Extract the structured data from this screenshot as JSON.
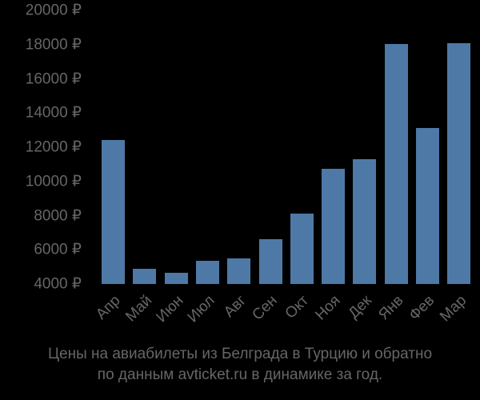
{
  "chart_data": {
    "type": "bar",
    "title": "Цены на авиабилеты из Белграда в Турцию и обратно по данным avticket.ru в динамике за год.",
    "xlabel": "",
    "ylabel": "",
    "categories": [
      "Апр",
      "Май",
      "Июн",
      "Июл",
      "Авг",
      "Сен",
      "Окт",
      "Ноя",
      "Дек",
      "Янв",
      "Фев",
      "Мар"
    ],
    "values": [
      12400,
      4900,
      4650,
      5350,
      5500,
      6600,
      8100,
      10750,
      11300,
      18050,
      13100,
      18100
    ],
    "ylim": [
      4000,
      20000
    ],
    "yticks": [
      4000,
      6000,
      8000,
      10000,
      12000,
      14000,
      16000,
      18000,
      20000
    ],
    "ytick_labels": [
      "4000 ₽",
      "6000 ₽",
      "8000 ₽",
      "10000 ₽",
      "12000 ₽",
      "14000 ₽",
      "16000 ₽",
      "18000 ₽",
      "20000 ₽"
    ],
    "grid": false,
    "legend": null,
    "colors": {
      "bar": "#4e79a7",
      "text": "#666666",
      "background": "#000000"
    }
  },
  "caption": {
    "line1": "Цены на авиабилеты из Белграда в Турцию и обратно",
    "line2": "по данным avticket.ru в динамике за год."
  }
}
